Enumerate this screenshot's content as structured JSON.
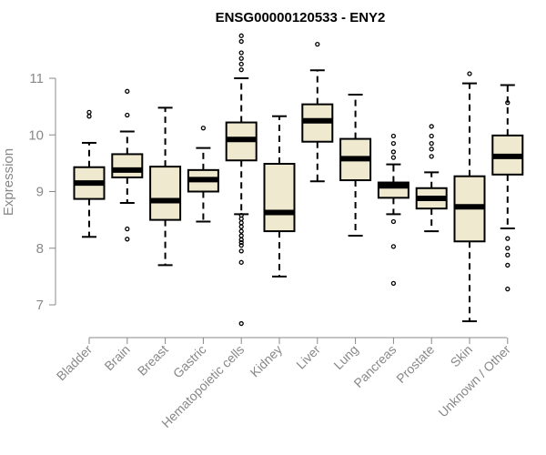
{
  "chart_data": {
    "type": "boxplot",
    "title": "ENSG00000120533 - ENY2",
    "xlabel": "",
    "ylabel": "Expression",
    "ylim": [
      6.6,
      11.75
    ],
    "yticks": [
      7,
      8,
      9,
      10,
      11
    ],
    "grid": false,
    "box_fill": "#efe9d0",
    "box_stroke": "#000000",
    "axis_color": "#888888",
    "categories": [
      "Bladder",
      "Brain",
      "Breast",
      "Gastric",
      "Hematopoietic cells",
      "Kidney",
      "Liver",
      "Lung",
      "Pancreas",
      "Prostate",
      "Skin",
      "Unknown / Other"
    ],
    "boxes": [
      {
        "whisker_low": 8.2,
        "q1": 8.87,
        "median": 9.15,
        "q3": 9.43,
        "whisker_high": 9.86,
        "outliers": [
          10.33,
          10.4
        ]
      },
      {
        "whisker_low": 8.8,
        "q1": 9.25,
        "median": 9.38,
        "q3": 9.66,
        "whisker_high": 10.06,
        "outliers": [
          8.16,
          8.34,
          10.35,
          10.77
        ]
      },
      {
        "whisker_low": 7.7,
        "q1": 8.5,
        "median": 8.84,
        "q3": 9.44,
        "whisker_high": 10.48,
        "outliers": []
      },
      {
        "whisker_low": 8.47,
        "q1": 9.0,
        "median": 9.21,
        "q3": 9.38,
        "whisker_high": 9.77,
        "outliers": [
          10.12
        ]
      },
      {
        "whisker_low": 8.6,
        "q1": 9.55,
        "median": 9.92,
        "q3": 10.22,
        "whisker_high": 11.0,
        "outliers": [
          6.67,
          7.75,
          7.95,
          8.05,
          8.1,
          8.15,
          8.22,
          8.3,
          8.38,
          8.45,
          8.52,
          8.58,
          11.15,
          11.25,
          11.35,
          11.45,
          11.65,
          11.75
        ]
      },
      {
        "whisker_low": 7.5,
        "q1": 8.3,
        "median": 8.63,
        "q3": 9.49,
        "whisker_high": 10.33,
        "outliers": []
      },
      {
        "whisker_low": 9.18,
        "q1": 9.88,
        "median": 10.25,
        "q3": 10.54,
        "whisker_high": 11.14,
        "outliers": [
          11.6
        ]
      },
      {
        "whisker_low": 8.22,
        "q1": 9.2,
        "median": 9.58,
        "q3": 9.93,
        "whisker_high": 10.71,
        "outliers": []
      },
      {
        "whisker_low": 8.6,
        "q1": 8.89,
        "median": 9.1,
        "q3": 9.16,
        "whisker_high": 9.48,
        "outliers": [
          7.38,
          8.03,
          8.47,
          9.6,
          9.7,
          9.85,
          9.98
        ]
      },
      {
        "whisker_low": 8.3,
        "q1": 8.7,
        "median": 8.88,
        "q3": 9.06,
        "whisker_high": 9.34,
        "outliers": [
          9.62,
          9.75,
          9.85,
          9.98,
          10.15
        ]
      },
      {
        "whisker_low": 6.71,
        "q1": 8.12,
        "median": 8.73,
        "q3": 9.27,
        "whisker_high": 10.91,
        "outliers": [
          11.08
        ]
      },
      {
        "whisker_low": 8.35,
        "q1": 9.3,
        "median": 9.62,
        "q3": 9.99,
        "whisker_high": 10.88,
        "outliers": [
          7.28,
          7.7,
          7.88,
          8.0,
          8.17,
          10.57
        ]
      }
    ]
  }
}
